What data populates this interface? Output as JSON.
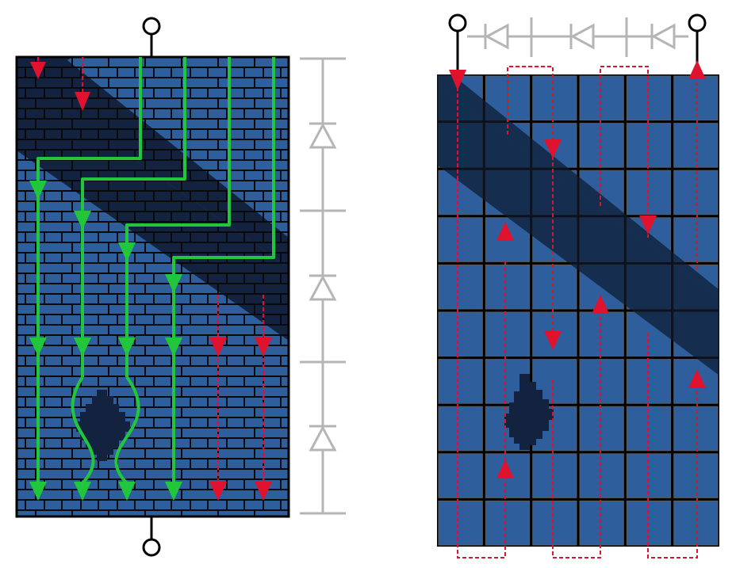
{
  "colors": {
    "panel_blue": "#2e5f9c",
    "mortar_black": "#0a0a0a",
    "shadow_navy": "#13233f",
    "current_green": "#22c63c",
    "reverse_red": "#e0122e",
    "diode_gray": "#b5b5b5",
    "terminal_black": "#000000"
  },
  "icons": {
    "terminal": "terminal-circle-icon",
    "diode": "bypass-diode-icon",
    "arrow_down": "arrow-down-icon",
    "arrow_up": "arrow-up-icon"
  },
  "left_panel": {
    "type": "thin-film-cells",
    "bypass_diodes": 3,
    "green_paths": 4,
    "red_paths": 4
  },
  "right_panel": {
    "type": "crystalline-cells",
    "grid_columns": 6,
    "grid_rows": 10,
    "bypass_diodes": 3
  }
}
